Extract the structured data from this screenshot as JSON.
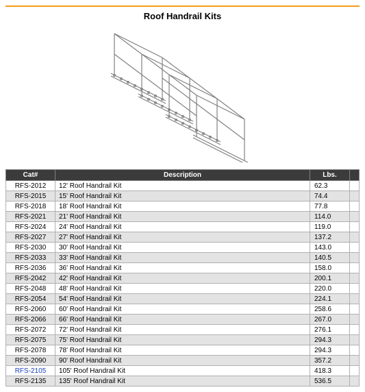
{
  "title": "Roof Handrail Kits",
  "accent_color": "#f39c12",
  "header_bg": "#3b3b3b",
  "header_fg": "#ffffff",
  "row_odd_bg": "#ffffff",
  "row_even_bg": "#e3e3e3",
  "border_color": "#b0b0b0",
  "link_color": "#1a3fbf",
  "diagram_stroke": "#808080",
  "table": {
    "columns": [
      "Cat#",
      "Description",
      "Lbs."
    ],
    "rows": [
      {
        "cat": "RFS-2012",
        "desc": "12' Roof Handrail Kit",
        "lbs": "62.3",
        "link": false
      },
      {
        "cat": "RFS-2015",
        "desc": "15' Roof Handrail Kit",
        "lbs": "74.4",
        "link": false
      },
      {
        "cat": "RFS-2018",
        "desc": "18' Roof Handrail Kit",
        "lbs": "77.8",
        "link": false
      },
      {
        "cat": "RFS-2021",
        "desc": "21' Roof Handrail Kit",
        "lbs": "114.0",
        "link": false
      },
      {
        "cat": "RFS-2024",
        "desc": "24' Roof Handrail Kit",
        "lbs": "119.0",
        "link": false
      },
      {
        "cat": "RFS-2027",
        "desc": "27' Roof Handrail Kit",
        "lbs": "137.2",
        "link": false
      },
      {
        "cat": "RFS-2030",
        "desc": "30' Roof Handrail Kit",
        "lbs": "143.0",
        "link": false
      },
      {
        "cat": "RFS-2033",
        "desc": "33' Roof Handrail Kit",
        "lbs": "140.5",
        "link": false
      },
      {
        "cat": "RFS-2036",
        "desc": "36' Roof Handrail Kit",
        "lbs": "158.0",
        "link": false
      },
      {
        "cat": "RFS-2042",
        "desc": "42' Roof Handrail Kit",
        "lbs": "200.1",
        "link": false
      },
      {
        "cat": "RFS-2048",
        "desc": "48' Roof Handrail Kit",
        "lbs": "220.0",
        "link": false
      },
      {
        "cat": "RFS-2054",
        "desc": "54' Roof Handrail Kit",
        "lbs": "224.1",
        "link": false
      },
      {
        "cat": "RFS-2060",
        "desc": "60' Roof Handrail Kit",
        "lbs": "258.6",
        "link": false
      },
      {
        "cat": "RFS-2066",
        "desc": "66' Roof Handrail Kit",
        "lbs": "267.0",
        "link": false
      },
      {
        "cat": "RFS-2072",
        "desc": "72' Roof Handrail Kit",
        "lbs": "276.1",
        "link": false
      },
      {
        "cat": "RFS-2075",
        "desc": "75' Roof Handrail Kit",
        "lbs": "294.3",
        "link": false
      },
      {
        "cat": "RFS-2078",
        "desc": "78' Roof Handrail Kit",
        "lbs": "294.3",
        "link": false
      },
      {
        "cat": "RFS-2090",
        "desc": "90' Roof Handrail Kit",
        "lbs": "357.2",
        "link": false
      },
      {
        "cat": "RFS-2105",
        "desc": "105' Roof Handrail Kit",
        "lbs": "418.3",
        "link": true
      },
      {
        "cat": "RFS-2135",
        "desc": "135' Roof Handrail Kit",
        "lbs": "536.5",
        "link": false
      }
    ]
  }
}
